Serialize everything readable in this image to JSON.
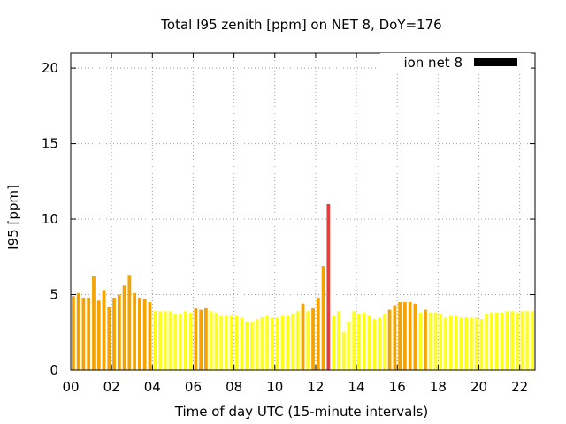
{
  "chart_data": {
    "type": "bar",
    "title": "Total I95 zenith [ppm] on NET 8, DoY=176",
    "xlabel": "Time of day UTC (15-minute intervals)",
    "ylabel": "I95 [ppm]",
    "ylim": [
      0,
      21
    ],
    "xlim": [
      0,
      22.75
    ],
    "yticks": [
      "0",
      "5",
      "10",
      "15",
      "20"
    ],
    "xticks": [
      "00",
      "02",
      "04",
      "06",
      "08",
      "10",
      "12",
      "14",
      "16",
      "18",
      "20",
      "22"
    ],
    "grid": true,
    "legend": {
      "position": "top-right",
      "entries": [
        {
          "label": "ion net 8",
          "color": "#000000"
        }
      ]
    },
    "bar_width_hours": 0.25,
    "color_thresholds": {
      "red_above": 10,
      "orange_from": 4
    },
    "colors": {
      "low": "#ffff1a",
      "medium": "#f5a300",
      "high": "#e04040"
    },
    "series": [
      {
        "x": [
          0,
          0.25,
          0.5,
          0.75,
          1,
          1.25,
          1.5,
          1.75,
          2,
          2.25,
          2.5,
          2.75,
          3,
          3.25,
          3.5,
          3.75,
          4,
          4.25,
          4.5,
          4.75,
          5,
          5.25,
          5.5,
          5.75,
          6,
          6.25,
          6.5,
          6.75,
          7,
          7.25,
          7.5,
          7.75,
          8,
          8.25,
          8.5,
          8.75,
          9,
          9.25,
          9.5,
          9.75,
          10,
          10.25,
          10.5,
          10.75,
          11,
          11.25,
          11.5,
          11.75,
          12,
          12.25,
          12.5,
          12.75,
          13,
          13.25,
          13.5,
          13.75,
          14,
          14.25,
          14.5,
          14.75,
          15,
          15.25,
          15.5,
          15.75,
          16,
          16.25,
          16.5,
          16.75,
          17,
          17.25,
          17.5,
          17.75,
          18,
          18.25,
          18.5,
          18.75,
          19,
          19.25,
          19.5,
          19.75,
          20,
          20.25,
          20.5,
          20.75,
          21,
          21.25,
          21.5,
          21.75,
          22,
          22.25,
          22.5
        ],
        "values": [
          4.9,
          5.1,
          4.8,
          4.8,
          6.2,
          4.6,
          5.3,
          4.2,
          4.8,
          5.0,
          5.6,
          6.3,
          5.1,
          4.8,
          4.7,
          4.5,
          3.9,
          3.9,
          3.9,
          3.9,
          3.7,
          3.7,
          3.9,
          3.8,
          4.1,
          4.0,
          4.1,
          3.9,
          3.8,
          3.6,
          3.6,
          3.6,
          3.6,
          3.5,
          3.2,
          3.2,
          3.4,
          3.5,
          3.6,
          3.5,
          3.5,
          3.6,
          3.6,
          3.7,
          3.9,
          4.4,
          3.9,
          4.1,
          4.8,
          6.9,
          11.0,
          3.6,
          3.9,
          2.5,
          3.2,
          3.9,
          3.7,
          3.8,
          3.6,
          3.4,
          3.5,
          3.7,
          4.0,
          4.3,
          4.5,
          4.5,
          4.5,
          4.4,
          3.8,
          4.0,
          3.8,
          3.8,
          3.7,
          3.5,
          3.6,
          3.6,
          3.5,
          3.5,
          3.5,
          3.5,
          3.4,
          3.7,
          3.8,
          3.8,
          3.8,
          3.9,
          3.9,
          3.8,
          3.9,
          3.9,
          3.9
        ]
      }
    ]
  }
}
